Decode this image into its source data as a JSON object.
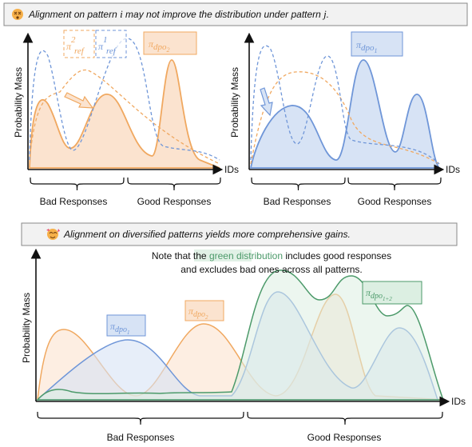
{
  "top_banner": {
    "parts": [
      "Alignment on pattern ",
      "i",
      " may not improve the distribution under pattern ",
      "j",
      "."
    ]
  },
  "top_left": {
    "y_label": "Probability Mass",
    "x_label": "IDs",
    "legend": [
      {
        "symbol": "π",
        "sup": "2",
        "sub": "ref"
      },
      {
        "symbol": "π",
        "sup": "1",
        "sub": "ref"
      },
      {
        "symbol": "π",
        "sub": "dpo",
        "subsub": "2"
      }
    ],
    "groups": [
      "Bad Responses",
      "Good Responses"
    ]
  },
  "top_right": {
    "y_label": "Probability Mass",
    "x_label": "IDs",
    "legend": [
      {
        "symbol": "π",
        "sub": "dpo",
        "subsub": "1"
      }
    ],
    "groups": [
      "Bad Responses",
      "Good Responses"
    ]
  },
  "bottom_banner": {
    "text": "Alignment on diversified patterns yields more comprehensive gains."
  },
  "bottom": {
    "y_label": "Probability Mass",
    "x_label": "IDs",
    "note": {
      "line1_before": "Note that the ",
      "highlight": "green distribution",
      "line1_after": " includes good responses",
      "line2": "and excludes bad ones across all patterns."
    },
    "legend": [
      {
        "symbol": "π",
        "sub": "dpo",
        "subsub": "1"
      },
      {
        "symbol": "π",
        "sub": "dpo",
        "subsub": "2"
      },
      {
        "symbol": "π",
        "sub": "dpo",
        "subsub": "1+2"
      }
    ],
    "groups": [
      "Bad Responses",
      "Good Responses"
    ]
  }
}
